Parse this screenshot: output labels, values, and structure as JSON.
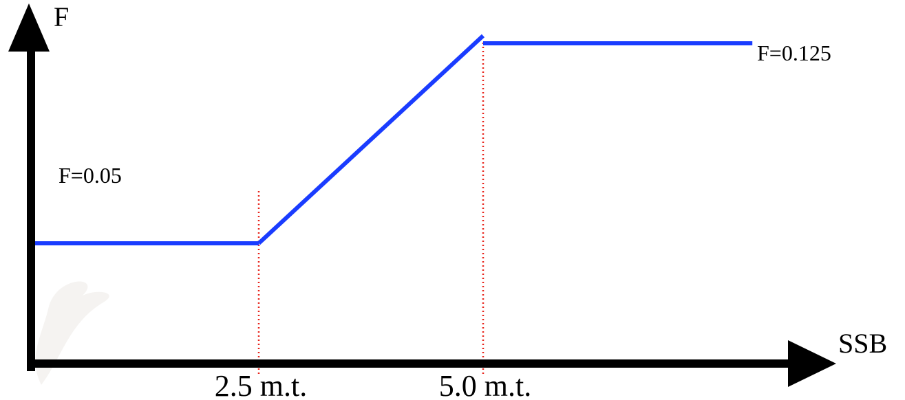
{
  "chart_data": {
    "type": "line",
    "title": "",
    "xlabel": "SSB",
    "ylabel": "F",
    "x_tick_labels": [
      {
        "x": 2.5,
        "label": "2.5 m.t."
      },
      {
        "x": 5.0,
        "label": "5.0 m.t."
      }
    ],
    "series": [
      {
        "color": "#1a3cff",
        "points": [
          {
            "x": 0.0,
            "y": 0.05
          },
          {
            "x": 2.5,
            "y": 0.05
          },
          {
            "x": 5.0,
            "y": 0.125
          },
          {
            "x": 8.0,
            "y": 0.125
          }
        ]
      }
    ],
    "reference_lines": [
      {
        "x": 2.5,
        "color": "#e8251c",
        "style": "dotted"
      },
      {
        "x": 5.0,
        "color": "#e8251c",
        "style": "dotted"
      }
    ],
    "annotations": [
      {
        "text": "F=0.05",
        "x": 0.3,
        "y": 0.05
      },
      {
        "text": "F=0.125",
        "x": 8.2,
        "y": 0.125
      }
    ],
    "grid": false
  }
}
